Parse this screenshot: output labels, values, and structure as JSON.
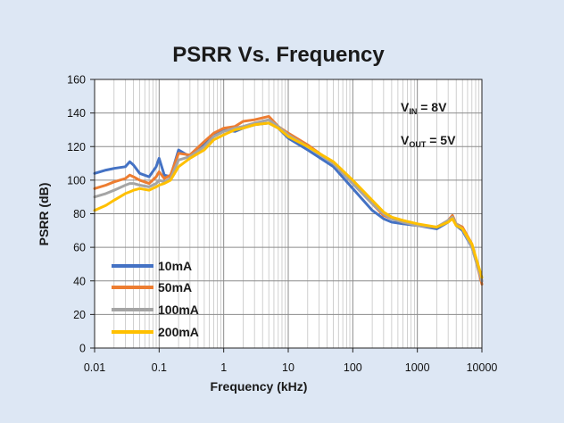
{
  "chart_data": {
    "type": "line",
    "title": "PSRR Vs. Frequency",
    "xlabel": "Frequency (kHz)",
    "ylabel": "PSRR (dB)",
    "xscale": "log",
    "xlim": [
      0.01,
      10000
    ],
    "ylim": [
      0,
      160
    ],
    "grid": true,
    "x_ticks": [
      0.01,
      0.1,
      1,
      10,
      100,
      1000,
      10000
    ],
    "x_tick_labels": [
      "0.01",
      "0.1",
      "1",
      "10",
      "100",
      "1000",
      "10000"
    ],
    "y_ticks": [
      0,
      20,
      40,
      60,
      80,
      100,
      120,
      140,
      160
    ],
    "y_tick_labels": [
      "0",
      "20",
      "40",
      "60",
      "80",
      "100",
      "120",
      "140",
      "160"
    ],
    "legend_position": "bottom-left",
    "annotations": [
      {
        "main": "V",
        "sub": "IN",
        "suffix": " = 8V"
      },
      {
        "main": "V",
        "sub": "OUT",
        "suffix": " = 5V"
      }
    ],
    "series": [
      {
        "name": "10mA",
        "color": "#4472c4",
        "x": [
          0.01,
          0.015,
          0.02,
          0.03,
          0.035,
          0.04,
          0.05,
          0.07,
          0.09,
          0.1,
          0.12,
          0.15,
          0.2,
          0.3,
          0.5,
          0.7,
          1,
          1.5,
          2,
          3,
          5,
          7,
          10,
          20,
          50,
          100,
          200,
          300,
          400,
          600,
          1000,
          2000,
          3000,
          3500,
          4000,
          5000,
          7000,
          10000
        ],
        "y": [
          104,
          106,
          107,
          108,
          111,
          109,
          104,
          102,
          108,
          113,
          103,
          102,
          118,
          114,
          121,
          127,
          130,
          129,
          131,
          133,
          134,
          131,
          125,
          118,
          108,
          95,
          82,
          77,
          75,
          74,
          73,
          71,
          75,
          78,
          73,
          70,
          60,
          40
        ]
      },
      {
        "name": "50mA",
        "color": "#ed7d31",
        "x": [
          0.01,
          0.015,
          0.02,
          0.03,
          0.035,
          0.04,
          0.05,
          0.07,
          0.09,
          0.1,
          0.12,
          0.15,
          0.2,
          0.3,
          0.5,
          0.7,
          1,
          1.5,
          2,
          3,
          5,
          7,
          10,
          20,
          50,
          100,
          200,
          300,
          400,
          600,
          1000,
          2000,
          3000,
          3500,
          4000,
          5000,
          7000,
          10000
        ],
        "y": [
          95,
          97,
          99,
          101,
          103,
          102,
          100,
          98,
          102,
          105,
          101,
          103,
          116,
          115,
          123,
          128,
          131,
          132,
          135,
          136,
          138,
          132,
          128,
          121,
          110,
          98,
          86,
          79,
          77,
          75,
          73,
          72,
          76,
          79,
          74,
          72,
          62,
          38
        ]
      },
      {
        "name": "100mA",
        "color": "#a5a5a5",
        "x": [
          0.01,
          0.015,
          0.02,
          0.03,
          0.035,
          0.04,
          0.05,
          0.07,
          0.09,
          0.1,
          0.12,
          0.15,
          0.2,
          0.3,
          0.5,
          0.7,
          1,
          1.5,
          2,
          3,
          5,
          7,
          10,
          20,
          50,
          100,
          200,
          300,
          400,
          600,
          1000,
          2000,
          3000,
          3500,
          4000,
          5000,
          7000,
          10000
        ],
        "y": [
          90,
          92,
          94,
          97,
          98,
          98,
          97,
          96,
          98,
          100,
          99,
          101,
          112,
          114,
          120,
          126,
          129,
          131,
          132,
          134,
          136,
          132,
          127,
          120,
          110,
          98,
          86,
          80,
          77,
          75,
          73,
          72,
          76,
          78,
          74,
          71,
          60,
          40
        ]
      },
      {
        "name": "200mA",
        "color": "#ffc000",
        "x": [
          0.01,
          0.015,
          0.02,
          0.03,
          0.035,
          0.04,
          0.05,
          0.07,
          0.09,
          0.1,
          0.12,
          0.15,
          0.2,
          0.3,
          0.5,
          0.7,
          1,
          1.5,
          2,
          3,
          5,
          7,
          10,
          20,
          50,
          100,
          200,
          300,
          400,
          600,
          1000,
          2000,
          3000,
          3500,
          4000,
          5000,
          7000,
          10000
        ],
        "y": [
          82,
          85,
          88,
          92,
          93,
          94,
          95,
          94,
          96,
          97,
          98,
          100,
          108,
          113,
          118,
          124,
          127,
          130,
          131,
          133,
          134,
          131,
          126,
          120,
          111,
          100,
          88,
          81,
          78,
          76,
          74,
          72,
          75,
          77,
          73,
          71,
          62,
          42
        ]
      }
    ]
  }
}
